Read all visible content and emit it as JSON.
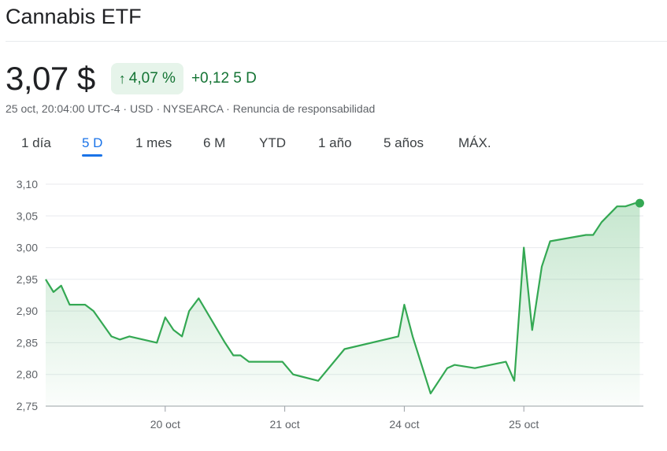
{
  "header": {
    "title": "Cannabis ETF"
  },
  "quote": {
    "price": "3,07 $",
    "change_percent": "4,07 %",
    "change_abs": "+0,12",
    "period": "5 D",
    "meta": {
      "timestamp": "25 oct, 20:04:00 UTC-4",
      "currency": "USD",
      "exchange": "NYSEARCA",
      "disclaimer": "Renuncia de responsabilidad",
      "separator": "·"
    }
  },
  "tabs": [
    {
      "label": "1 día"
    },
    {
      "label": "5 D",
      "active": true
    },
    {
      "label": "1 mes"
    },
    {
      "label": "6 M"
    },
    {
      "label": "YTD"
    },
    {
      "label": "1 año"
    },
    {
      "label": "5 años"
    },
    {
      "label": "MÁX."
    }
  ],
  "colors": {
    "line": "#34a853",
    "positive_text": "#137333",
    "positive_bg": "#e6f4ea",
    "accent": "#1a73e8"
  },
  "icons": {
    "change_arrow": "arrow-up-icon"
  },
  "chart_data": {
    "type": "area",
    "title": "",
    "xlabel": "",
    "ylabel": "",
    "ylim": [
      2.75,
      3.1
    ],
    "yticks": [
      3.1,
      3.05,
      3.0,
      2.95,
      2.9,
      2.85,
      2.8,
      2.75
    ],
    "ytick_labels": [
      "3,10",
      "3,05",
      "3,00",
      "2,95",
      "2,90",
      "2,85",
      "2,80",
      "2,75"
    ],
    "xlim": [
      0,
      5
    ],
    "xticks": [
      1,
      2,
      3,
      4
    ],
    "xtick_labels": [
      "20 oct",
      "21 oct",
      "24 oct",
      "25 oct"
    ],
    "grid": true,
    "series": [
      {
        "x": [
          0,
          0.065,
          0.13,
          0.2,
          0.33,
          0.4,
          0.55,
          0.62,
          0.7,
          0.93,
          1.0,
          1.07,
          1.14,
          1.2,
          1.28,
          1.5,
          1.57,
          1.63,
          1.7,
          1.98,
          2.07,
          2.28,
          2.5,
          2.95,
          3.0,
          3.07,
          3.22,
          3.36,
          3.42,
          3.59,
          3.85,
          3.92,
          4.0,
          4.07,
          4.15,
          4.22,
          4.52,
          4.58,
          4.65,
          4.78,
          4.85,
          4.93,
          4.97
        ],
        "y": [
          2.95,
          2.93,
          2.94,
          2.91,
          2.91,
          2.9,
          2.86,
          2.855,
          2.86,
          2.85,
          2.89,
          2.87,
          2.86,
          2.9,
          2.92,
          2.85,
          2.83,
          2.83,
          2.82,
          2.82,
          2.8,
          2.79,
          2.84,
          2.86,
          2.91,
          2.86,
          2.77,
          2.81,
          2.815,
          2.81,
          2.82,
          2.79,
          3.0,
          2.87,
          2.97,
          3.01,
          3.02,
          3.02,
          3.04,
          3.065,
          3.065,
          3.07,
          3.07
        ]
      }
    ]
  }
}
